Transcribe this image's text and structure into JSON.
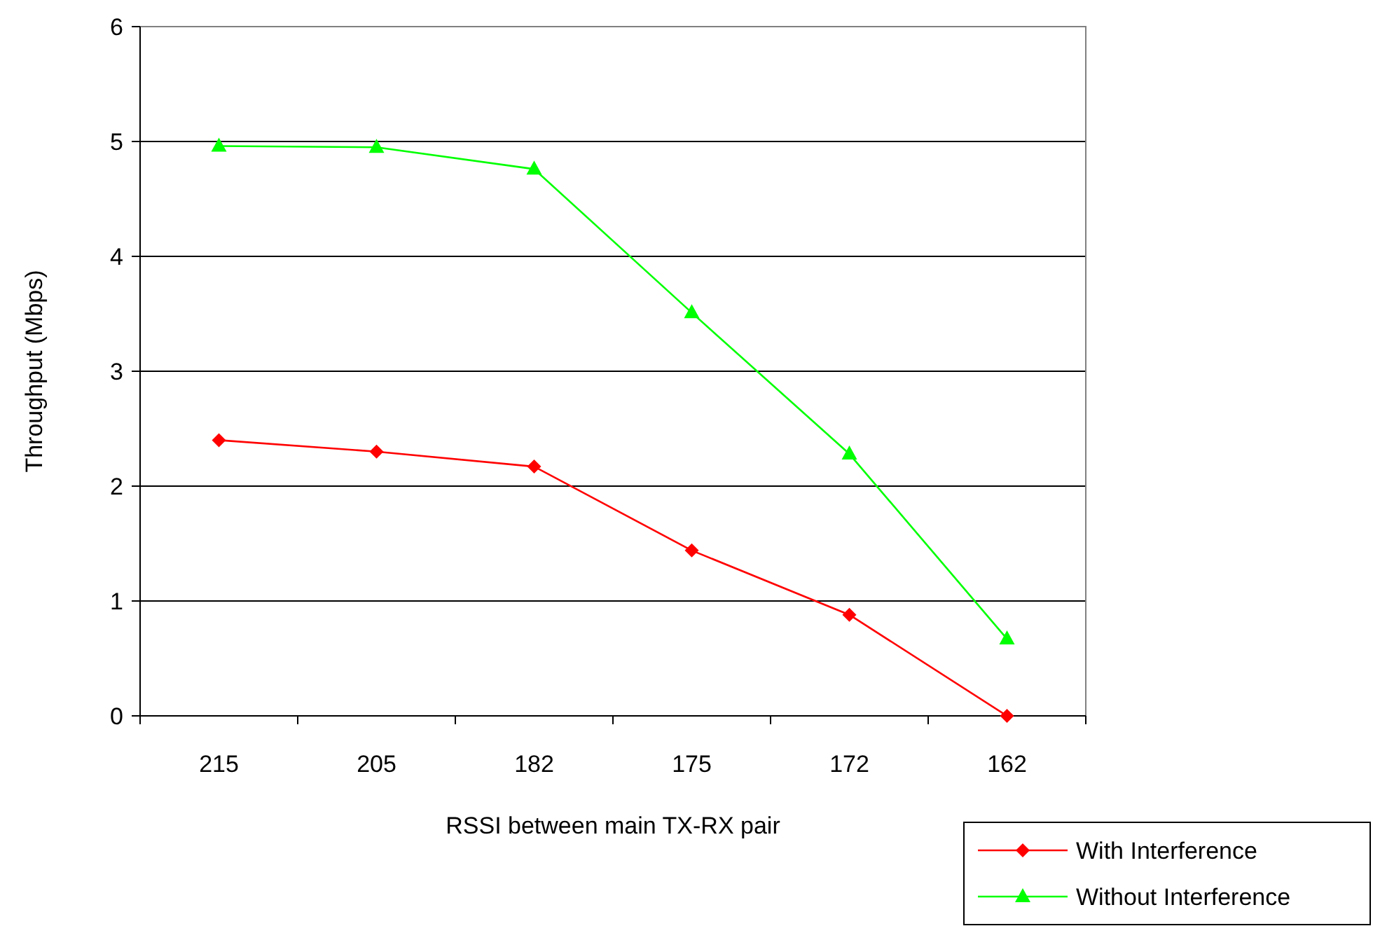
{
  "chart_data": {
    "type": "line",
    "xlabel": "RSSI between main TX-RX pair",
    "ylabel": "Throughput (Mbps)",
    "categories": [
      "215",
      "205",
      "182",
      "175",
      "172",
      "162"
    ],
    "series": [
      {
        "name": "With Interference",
        "color": "#ff0000",
        "marker": "diamond",
        "values": [
          2.4,
          2.3,
          2.17,
          1.44,
          0.88,
          0
        ]
      },
      {
        "name": "Without Interference",
        "color": "#00ff00",
        "marker": "triangle",
        "values": [
          4.96,
          4.95,
          4.76,
          3.51,
          2.28,
          0.67
        ]
      }
    ],
    "ylim": [
      0,
      6
    ],
    "yticks": [
      0,
      1,
      2,
      3,
      4,
      5,
      6
    ],
    "grid": "y",
    "legend": "bottom right",
    "line_style": "solid"
  }
}
